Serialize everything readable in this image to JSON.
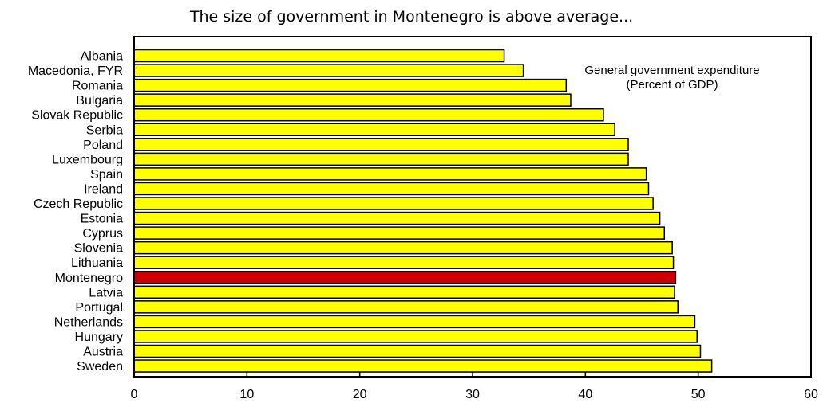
{
  "chart_data": {
    "type": "bar",
    "orientation": "horizontal",
    "title": "The size of government  in Montenegro is above average...",
    "annotation": [
      "General government expenditure",
      "(Percent of GDP)"
    ],
    "categories": [
      "Albania",
      "Macedonia, FYR",
      "Romania",
      "Bulgaria",
      "Slovak Republic",
      "Serbia",
      "Poland",
      "Luxembourg",
      "Spain",
      "Ireland",
      "Czech Republic",
      "Estonia",
      "Cyprus",
      "Slovenia",
      "Lithuania",
      "Montenegro",
      "Latvia",
      "Portugal",
      "Netherlands",
      "Hungary",
      "Austria",
      "Sweden"
    ],
    "values": [
      32.8,
      34.5,
      38.3,
      38.7,
      41.6,
      42.6,
      43.8,
      43.8,
      45.4,
      45.6,
      46.0,
      46.6,
      47.0,
      47.7,
      47.8,
      48.0,
      47.9,
      48.2,
      49.7,
      49.9,
      50.2,
      51.2
    ],
    "highlight": "Montenegro",
    "xlim": [
      0,
      60
    ],
    "xticks": [
      0,
      10,
      20,
      30,
      40,
      50,
      60
    ],
    "xtick_labels": [
      "0",
      "10",
      "20",
      "30",
      "40",
      "50",
      "60"
    ],
    "colors": {
      "bar": "#ffff00",
      "highlight": "#cc0000",
      "edge": "#000000"
    },
    "grid": false
  }
}
